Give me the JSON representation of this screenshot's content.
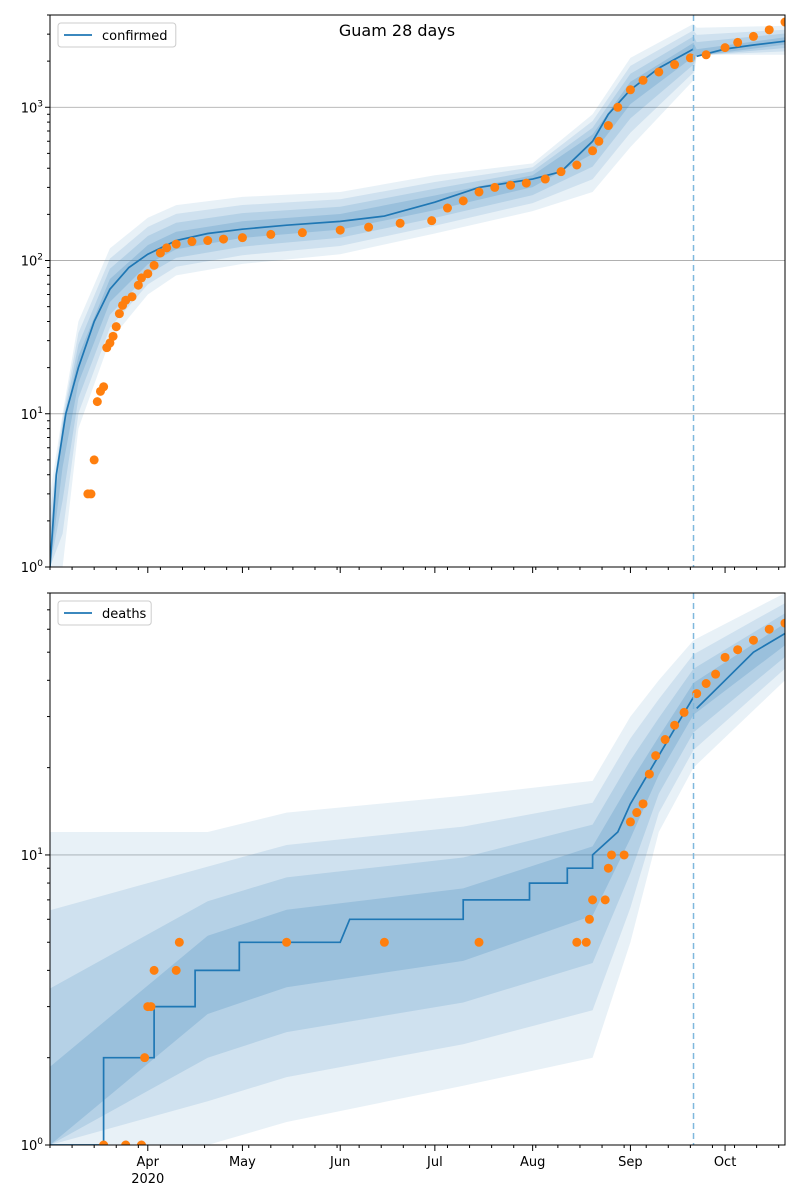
{
  "figure": {
    "title": "Guam 28 days"
  },
  "chart_data": [
    {
      "type": "line",
      "panel": "top",
      "title": "Guam 28 days",
      "xlabel": "",
      "ylabel": "",
      "yscale": "log",
      "ylim": [
        1,
        4000
      ],
      "ytick_values": [
        1,
        10,
        100,
        1000
      ],
      "ytick_labels": [
        "10^0",
        "10^1",
        "10^2",
        "10^3"
      ],
      "grid": "horizontal major",
      "legend": {
        "placement": "top-left",
        "entries": [
          "confirmed"
        ]
      },
      "forecast_start": "2020-09-21",
      "series": [
        {
          "name": "confirmed",
          "kind": "model-median",
          "color": "#1f77b4",
          "points": [
            [
              "2020-03-01",
              1
            ],
            [
              "2020-03-03",
              4
            ],
            [
              "2020-03-06",
              10
            ],
            [
              "2020-03-10",
              20
            ],
            [
              "2020-03-15",
              40
            ],
            [
              "2020-03-20",
              65
            ],
            [
              "2020-03-26",
              90
            ],
            [
              "2020-04-01",
              110
            ],
            [
              "2020-04-10",
              135
            ],
            [
              "2020-04-20",
              150
            ],
            [
              "2020-05-01",
              160
            ],
            [
              "2020-05-15",
              170
            ],
            [
              "2020-06-01",
              180
            ],
            [
              "2020-06-15",
              195
            ],
            [
              "2020-07-01",
              240
            ],
            [
              "2020-07-15",
              300
            ],
            [
              "2020-08-01",
              340
            ],
            [
              "2020-08-10",
              380
            ],
            [
              "2020-08-20",
              600
            ],
            [
              "2020-08-25",
              900
            ],
            [
              "2020-09-01",
              1300
            ],
            [
              "2020-09-10",
              1800
            ],
            [
              "2020-09-21",
              2400
            ],
            [
              "2020-09-22",
              2150
            ],
            [
              "2020-10-01",
              2400
            ],
            [
              "2020-10-10",
              2550
            ],
            [
              "2020-10-20",
              2700
            ]
          ]
        },
        {
          "name": "",
          "kind": "observed",
          "color": "#ff7f0e",
          "points": [
            [
              "2020-03-13",
              3
            ],
            [
              "2020-03-14",
              3
            ],
            [
              "2020-03-15",
              5
            ],
            [
              "2020-03-16",
              12
            ],
            [
              "2020-03-17",
              14
            ],
            [
              "2020-03-18",
              15
            ],
            [
              "2020-03-19",
              27
            ],
            [
              "2020-03-20",
              29
            ],
            [
              "2020-03-21",
              32
            ],
            [
              "2020-03-22",
              37
            ],
            [
              "2020-03-23",
              45
            ],
            [
              "2020-03-24",
              51
            ],
            [
              "2020-03-25",
              55
            ],
            [
              "2020-03-27",
              58
            ],
            [
              "2020-03-29",
              69
            ],
            [
              "2020-03-30",
              77
            ],
            [
              "2020-04-01",
              82
            ],
            [
              "2020-04-03",
              93
            ],
            [
              "2020-04-05",
              112
            ],
            [
              "2020-04-07",
              121
            ],
            [
              "2020-04-10",
              128
            ],
            [
              "2020-04-15",
              133
            ],
            [
              "2020-04-20",
              135
            ],
            [
              "2020-04-25",
              138
            ],
            [
              "2020-05-01",
              141
            ],
            [
              "2020-05-10",
              148
            ],
            [
              "2020-05-20",
              152
            ],
            [
              "2020-06-01",
              158
            ],
            [
              "2020-06-10",
              165
            ],
            [
              "2020-06-20",
              175
            ],
            [
              "2020-06-30",
              182
            ],
            [
              "2020-07-05",
              220
            ],
            [
              "2020-07-10",
              245
            ],
            [
              "2020-07-15",
              280
            ],
            [
              "2020-07-20",
              300
            ],
            [
              "2020-07-25",
              310
            ],
            [
              "2020-07-30",
              320
            ],
            [
              "2020-08-05",
              340
            ],
            [
              "2020-08-10",
              380
            ],
            [
              "2020-08-15",
              420
            ],
            [
              "2020-08-20",
              520
            ],
            [
              "2020-08-22",
              600
            ],
            [
              "2020-08-25",
              760
            ],
            [
              "2020-08-28",
              1000
            ],
            [
              "2020-09-01",
              1300
            ],
            [
              "2020-09-05",
              1500
            ],
            [
              "2020-09-10",
              1700
            ],
            [
              "2020-09-15",
              1900
            ],
            [
              "2020-09-20",
              2100
            ],
            [
              "2020-09-25",
              2200
            ],
            [
              "2020-10-01",
              2450
            ],
            [
              "2020-10-05",
              2650
            ],
            [
              "2020-10-10",
              2900
            ],
            [
              "2020-10-15",
              3200
            ],
            [
              "2020-10-20",
              3600
            ]
          ]
        }
      ],
      "uncertainty_bands": [
        {
          "name": "",
          "color": "#1f77b4",
          "lower": [
            [
              "2020-03-01",
              1
            ],
            [
              "2020-03-05",
              1
            ],
            [
              "2020-03-10",
              8
            ],
            [
              "2020-03-20",
              30
            ],
            [
              "2020-04-01",
              60
            ],
            [
              "2020-04-10",
              80
            ],
            [
              "2020-05-01",
              95
            ],
            [
              "2020-06-01",
              110
            ],
            [
              "2020-07-01",
              150
            ],
            [
              "2020-08-01",
              210
            ],
            [
              "2020-08-20",
              280
            ],
            [
              "2020-09-01",
              550
            ],
            [
              "2020-09-21",
              1500
            ],
            [
              "2020-09-22",
              2200
            ],
            [
              "2020-10-20",
              2200
            ]
          ],
          "upper": [
            [
              "2020-03-01",
              3
            ],
            [
              "2020-03-05",
              10
            ],
            [
              "2020-03-10",
              40
            ],
            [
              "2020-03-20",
              120
            ],
            [
              "2020-04-01",
              190
            ],
            [
              "2020-04-10",
              230
            ],
            [
              "2020-05-01",
              260
            ],
            [
              "2020-06-01",
              280
            ],
            [
              "2020-07-01",
              360
            ],
            [
              "2020-08-01",
              430
            ],
            [
              "2020-08-20",
              900
            ],
            [
              "2020-09-01",
              2100
            ],
            [
              "2020-09-21",
              3500
            ],
            [
              "2020-09-22",
              3300
            ],
            [
              "2020-10-20",
              3400
            ]
          ]
        }
      ]
    },
    {
      "type": "line",
      "panel": "bottom",
      "title": "",
      "xlabel": "",
      "ylabel": "",
      "yscale": "log",
      "ylim": [
        1,
        80
      ],
      "ytick_values": [
        1,
        10
      ],
      "ytick_labels": [
        "10^0",
        "10^1"
      ],
      "grid": "horizontal major",
      "legend": {
        "placement": "top-left",
        "entries": [
          "deaths"
        ]
      },
      "forecast_start": "2020-09-21",
      "x_ticks": [
        "Apr\n2020",
        "May",
        "Jun",
        "Jul",
        "Aug",
        "Sep",
        "Oct"
      ],
      "series": [
        {
          "name": "deaths",
          "kind": "model-median",
          "color": "#1f77b4",
          "points": [
            [
              "2020-03-01",
              1
            ],
            [
              "2020-03-18",
              1
            ],
            [
              "2020-03-18",
              2
            ],
            [
              "2020-04-03",
              2
            ],
            [
              "2020-04-03",
              3
            ],
            [
              "2020-04-16",
              3
            ],
            [
              "2020-04-16",
              4
            ],
            [
              "2020-04-30",
              4
            ],
            [
              "2020-04-30",
              5
            ],
            [
              "2020-06-01",
              5
            ],
            [
              "2020-06-04",
              6
            ],
            [
              "2020-07-10",
              6
            ],
            [
              "2020-07-10",
              7
            ],
            [
              "2020-07-31",
              7
            ],
            [
              "2020-07-31",
              8
            ],
            [
              "2020-08-12",
              8
            ],
            [
              "2020-08-12",
              9
            ],
            [
              "2020-08-20",
              9
            ],
            [
              "2020-08-20",
              10
            ],
            [
              "2020-08-28",
              12
            ],
            [
              "2020-09-01",
              15
            ],
            [
              "2020-09-10",
              22
            ],
            [
              "2020-09-21",
              35
            ],
            [
              "2020-09-22",
              32
            ],
            [
              "2020-10-01",
              40
            ],
            [
              "2020-10-10",
              50
            ],
            [
              "2020-10-20",
              58
            ]
          ]
        },
        {
          "name": "",
          "kind": "observed",
          "color": "#ff7f0e",
          "points": [
            [
              "2020-03-18",
              1
            ],
            [
              "2020-03-25",
              1
            ],
            [
              "2020-03-30",
              1
            ],
            [
              "2020-03-31",
              2
            ],
            [
              "2020-04-01",
              3
            ],
            [
              "2020-04-02",
              3
            ],
            [
              "2020-04-03",
              4
            ],
            [
              "2020-04-10",
              4
            ],
            [
              "2020-04-11",
              5
            ],
            [
              "2020-05-15",
              5
            ],
            [
              "2020-06-15",
              5
            ],
            [
              "2020-07-15",
              5
            ],
            [
              "2020-08-15",
              5
            ],
            [
              "2020-08-18",
              5
            ],
            [
              "2020-08-19",
              6
            ],
            [
              "2020-08-20",
              7
            ],
            [
              "2020-08-24",
              7
            ],
            [
              "2020-08-25",
              9
            ],
            [
              "2020-08-26",
              10
            ],
            [
              "2020-08-30",
              10
            ],
            [
              "2020-09-01",
              13
            ],
            [
              "2020-09-03",
              14
            ],
            [
              "2020-09-05",
              15
            ],
            [
              "2020-09-07",
              19
            ],
            [
              "2020-09-09",
              22
            ],
            [
              "2020-09-12",
              25
            ],
            [
              "2020-09-15",
              28
            ],
            [
              "2020-09-18",
              31
            ],
            [
              "2020-09-22",
              36
            ],
            [
              "2020-09-25",
              39
            ],
            [
              "2020-09-28",
              42
            ],
            [
              "2020-10-01",
              48
            ],
            [
              "2020-10-05",
              51
            ],
            [
              "2020-10-10",
              55
            ],
            [
              "2020-10-15",
              60
            ],
            [
              "2020-10-20",
              63
            ]
          ]
        }
      ],
      "uncertainty_bands": [
        {
          "name": "",
          "color": "#1f77b4",
          "lower": [
            [
              "2020-03-01",
              1
            ],
            [
              "2020-04-20",
              1
            ],
            [
              "2020-05-15",
              1.2
            ],
            [
              "2020-07-10",
              1.6
            ],
            [
              "2020-08-20",
              2
            ],
            [
              "2020-09-01",
              5
            ],
            [
              "2020-09-10",
              12
            ],
            [
              "2020-09-21",
              20
            ],
            [
              "2020-10-20",
              40
            ]
          ],
          "upper": [
            [
              "2020-03-01",
              12
            ],
            [
              "2020-04-20",
              12
            ],
            [
              "2020-05-15",
              14
            ],
            [
              "2020-07-10",
              16
            ],
            [
              "2020-08-20",
              18
            ],
            [
              "2020-09-01",
              30
            ],
            [
              "2020-09-10",
              40
            ],
            [
              "2020-09-21",
              55
            ],
            [
              "2020-10-20",
              80
            ]
          ]
        }
      ]
    }
  ]
}
